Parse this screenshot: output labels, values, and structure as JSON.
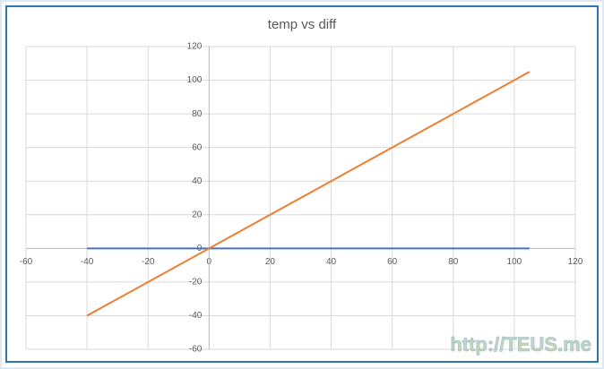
{
  "chart_data": {
    "type": "scatter",
    "title": "temp vs diff",
    "x": [
      -40,
      105
    ],
    "series": [
      {
        "color": "#4472c4",
        "values": [
          0,
          0
        ]
      },
      {
        "color": "#ed7d31",
        "values": [
          -40,
          105
        ]
      }
    ],
    "xlim": [
      -60,
      120
    ],
    "xticks": [
      -60,
      -40,
      -20,
      0,
      20,
      40,
      60,
      80,
      100,
      120
    ],
    "ylim": [
      -60,
      120
    ],
    "yticks": [
      -60,
      -40,
      -20,
      0,
      20,
      40,
      60,
      80,
      100,
      120
    ],
    "grid": true
  },
  "watermark": "http://TEUS.me"
}
